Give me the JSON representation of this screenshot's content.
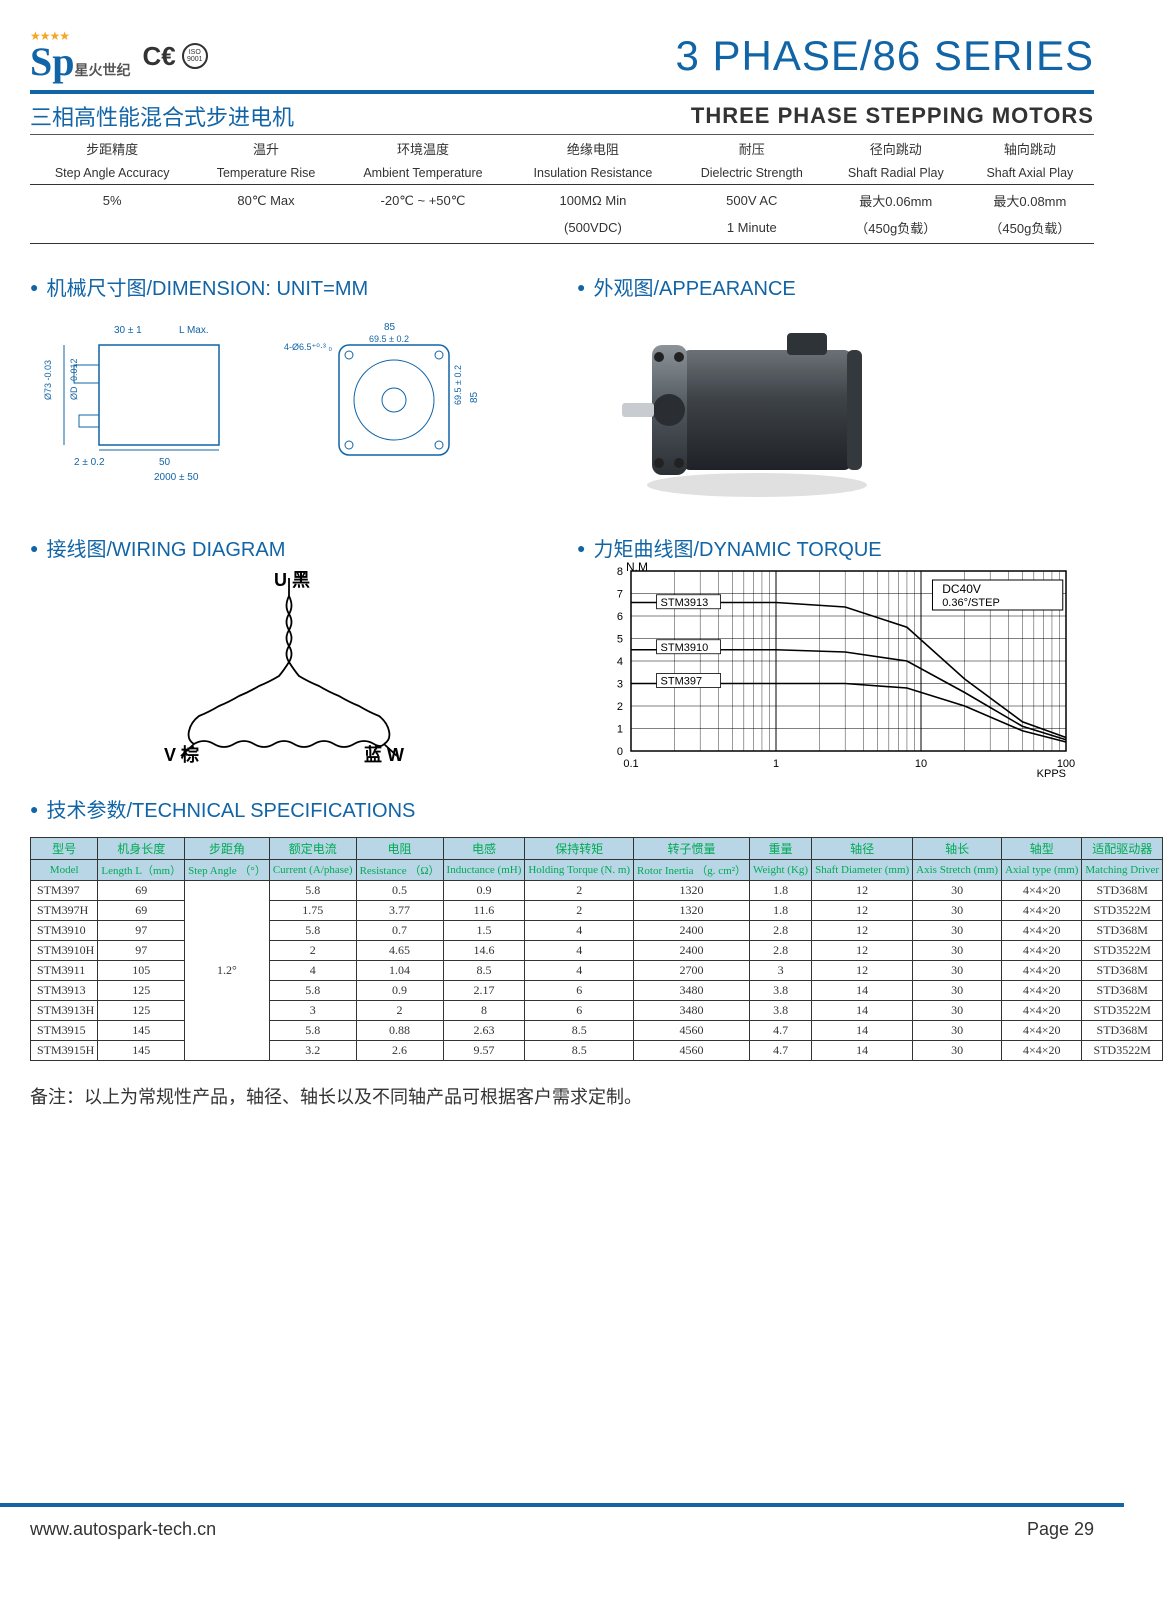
{
  "header": {
    "logo_sp": "Sp",
    "logo_cn": "星火世纪",
    "ce": "C€",
    "iso": "ISO 9001",
    "title": "3 PHASE/86 SERIES"
  },
  "subtitle": {
    "cn": "三相高性能混合式步进电机",
    "en": "THREE PHASE STEPPING MOTORS"
  },
  "spec_top": {
    "columns": [
      {
        "cn": "步距精度",
        "en": "Step Angle Accuracy",
        "v1": "5%",
        "v2": ""
      },
      {
        "cn": "温升",
        "en": "Temperature Rise",
        "v1": "80℃ Max",
        "v2": ""
      },
      {
        "cn": "环境温度",
        "en": "Ambient Temperature",
        "v1": "-20℃ ~ +50℃",
        "v2": ""
      },
      {
        "cn": "绝缘电阻",
        "en": "Insulation Resistance",
        "v1": "100MΩ Min",
        "v2": "(500VDC)"
      },
      {
        "cn": "耐压",
        "en": "Dielectric Strength",
        "v1": "500V AC",
        "v2": "1 Minute"
      },
      {
        "cn": "径向跳动",
        "en": "Shaft Radial Play",
        "v1": "最大0.06mm",
        "v2": "（450g负载）"
      },
      {
        "cn": "轴向跳动",
        "en": "Shaft Axial Play",
        "v1": "最大0.08mm",
        "v2": "（450g负载）"
      }
    ]
  },
  "sections": {
    "dimension": "机械尺寸图/DIMENSION: UNIT=MM",
    "appearance": "外观图/APPEARANCE",
    "wiring": "接线图/WIRING DIAGRAM",
    "torque": "力矩曲线图/DYNAMIC TORQUE",
    "tech": "技术参数/TECHNICAL SPECIFICATIONS"
  },
  "dimension_labels": {
    "l1": "30 ± 1",
    "l2": "L Max.",
    "l3": "85",
    "l4": "69.5 ± 0.2",
    "l5": "4-Ø6.5⁺⁰·³ ₀",
    "l6": "Ø73 -0.03",
    "l7": "ØD -0.012",
    "l8": "2 ± 0.2",
    "l9": "50",
    "l10": "2000 ± 50",
    "l11": "69.5 ± 0.2",
    "l12": "85"
  },
  "wiring_labels": {
    "u": "U 黑",
    "v": "V 棕",
    "w": "蓝 W"
  },
  "torque_chart": {
    "ylabel": "N.M",
    "xlabel": "KPPS",
    "note1": "DC40V",
    "note2": "0.36°/STEP",
    "ymax": 8,
    "xticks": [
      "0.1",
      "1",
      "10",
      "100"
    ],
    "series": [
      {
        "name": "STM3913",
        "label_y": 6.5
      },
      {
        "name": "STM3910",
        "label_y": 4.5
      },
      {
        "name": "STM397",
        "label_y": 3
      }
    ]
  },
  "tech_table": {
    "head_cn": [
      "型号",
      "机身长度",
      "步距角",
      "额定电流",
      "电阻",
      "电感",
      "保持转矩",
      "转子惯量",
      "重量",
      "轴径",
      "轴长",
      "轴型",
      "适配驱动器"
    ],
    "head_en": [
      "Model",
      "Length L（mm）",
      "Step Angle （°）",
      "Current (A/phase)",
      "Resistance （Ω）",
      "Inductance (mH)",
      "Holding Torque (N. m)",
      "Rotor Inertia （g. cm²）",
      "Weight (Kg)",
      "Shaft Diameter (mm)",
      "Axis Stretch (mm)",
      "Axial type (mm)",
      "Matching Driver"
    ],
    "step_angle": "1.2°",
    "rows": [
      [
        "STM397",
        "69",
        "5.8",
        "0.5",
        "0.9",
        "2",
        "1320",
        "1.8",
        "12",
        "30",
        "4×4×20",
        "STD368M"
      ],
      [
        "STM397H",
        "69",
        "1.75",
        "3.77",
        "11.6",
        "2",
        "1320",
        "1.8",
        "12",
        "30",
        "4×4×20",
        "STD3522M"
      ],
      [
        "STM3910",
        "97",
        "5.8",
        "0.7",
        "1.5",
        "4",
        "2400",
        "2.8",
        "12",
        "30",
        "4×4×20",
        "STD368M"
      ],
      [
        "STM3910H",
        "97",
        "2",
        "4.65",
        "14.6",
        "4",
        "2400",
        "2.8",
        "12",
        "30",
        "4×4×20",
        "STD3522M"
      ],
      [
        "STM3911",
        "105",
        "4",
        "1.04",
        "8.5",
        "4",
        "2700",
        "3",
        "12",
        "30",
        "4×4×20",
        "STD368M"
      ],
      [
        "STM3913",
        "125",
        "5.8",
        "0.9",
        "2.17",
        "6",
        "3480",
        "3.8",
        "14",
        "30",
        "4×4×20",
        "STD368M"
      ],
      [
        "STM3913H",
        "125",
        "3",
        "2",
        "8",
        "6",
        "3480",
        "3.8",
        "14",
        "30",
        "4×4×20",
        "STD3522M"
      ],
      [
        "STM3915",
        "145",
        "5.8",
        "0.88",
        "2.63",
        "8.5",
        "4560",
        "4.7",
        "14",
        "30",
        "4×4×20",
        "STD368M"
      ],
      [
        "STM3915H",
        "145",
        "3.2",
        "2.6",
        "9.57",
        "8.5",
        "4560",
        "4.7",
        "14",
        "30",
        "4×4×20",
        "STD3522M"
      ]
    ]
  },
  "note": "备注：以上为常规性产品，轴径、轴长以及不同轴产品可根据客户需求定制。",
  "footer": {
    "url": "www.autospark-tech.cn",
    "page": "Page 29"
  },
  "colors": {
    "brand": "#1164a6",
    "header_bg": "#b8d6e6",
    "green": "#0a5",
    "star": "#f5a623"
  }
}
